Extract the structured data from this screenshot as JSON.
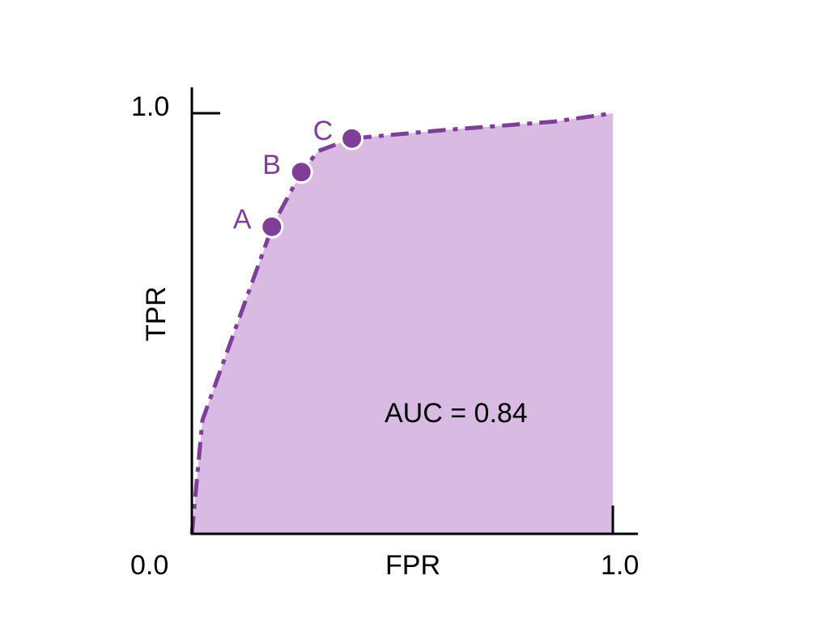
{
  "chart_data": {
    "type": "area",
    "xlabel": "FPR",
    "ylabel": "TPR",
    "xlim": [
      0,
      1
    ],
    "ylim": [
      0,
      1
    ],
    "x_tick_labels": [
      "0.0",
      "1.0"
    ],
    "y_tick_labels": [
      "1.0"
    ],
    "grid": false,
    "curve": {
      "x": [
        0,
        0.025,
        0.18,
        0.19,
        0.26,
        0.3,
        0.38,
        0.6,
        0.86,
        1.0
      ],
      "y": [
        0,
        0.27,
        0.7,
        0.73,
        0.86,
        0.91,
        0.94,
        0.96,
        0.98,
        1.0
      ],
      "line_style": "dash-dot"
    },
    "points": [
      {
        "label": "A",
        "x": 0.19,
        "y": 0.73
      },
      {
        "label": "B",
        "x": 0.26,
        "y": 0.86
      },
      {
        "label": "C",
        "x": 0.38,
        "y": 0.94
      }
    ],
    "annotation": "AUC = 0.84",
    "colors": {
      "line": "#7f3f98",
      "fill": "#d9bae3",
      "axis": "#000000"
    }
  }
}
